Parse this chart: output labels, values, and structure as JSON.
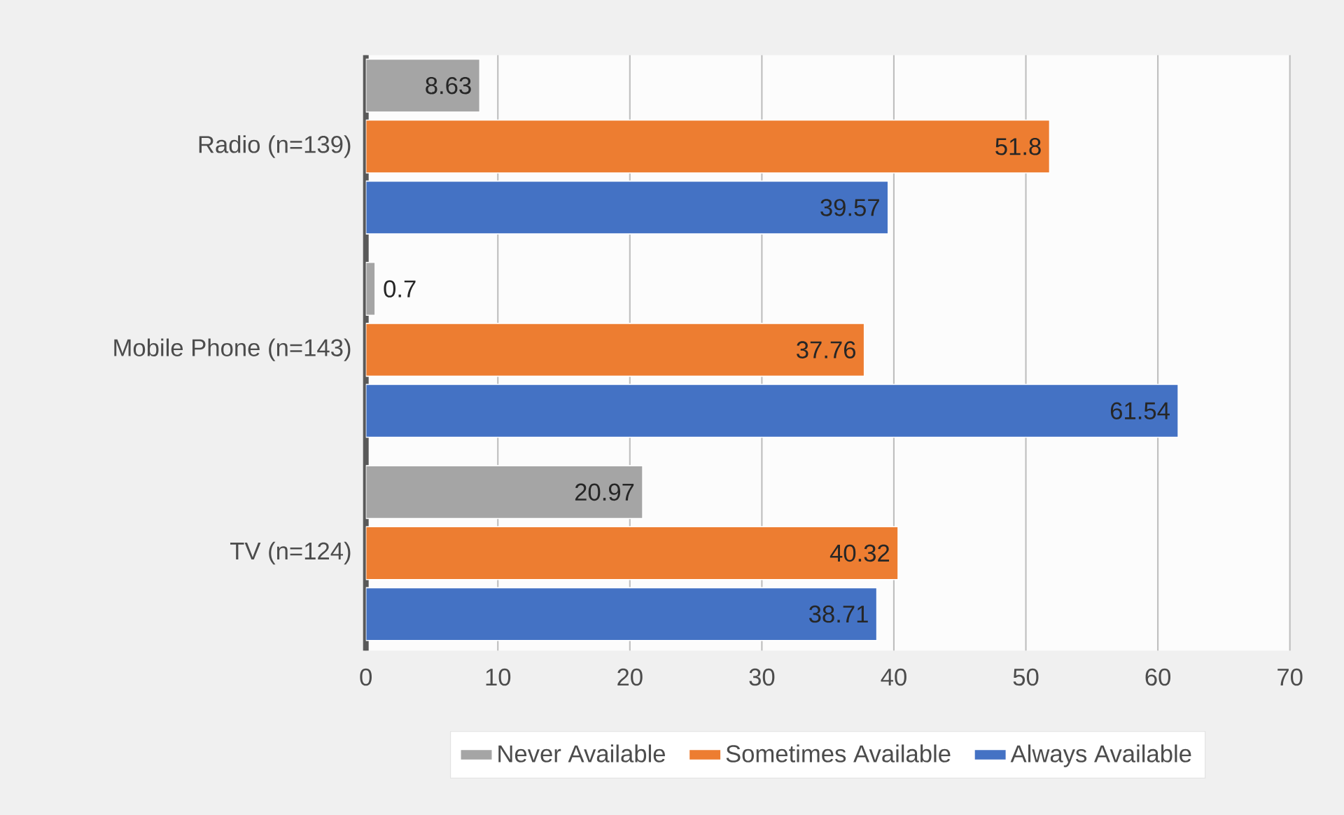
{
  "chart_data": {
    "type": "bar",
    "orientation": "horizontal",
    "categories": [
      "Radio (n=139)",
      "Mobile Phone (n=143)",
      "TV (n=124)"
    ],
    "series": [
      {
        "name": "Never Available",
        "color": "#a5a5a5",
        "values": [
          8.63,
          0.7,
          20.97
        ],
        "value_labels": [
          "8.63",
          "0.7",
          "20.97"
        ]
      },
      {
        "name": "Sometimes Available",
        "color": "#ed7d31",
        "values": [
          51.8,
          37.76,
          40.32
        ],
        "value_labels": [
          "51.8",
          "37.76",
          "40.32"
        ]
      },
      {
        "name": "Always Available",
        "color": "#4472c4",
        "values": [
          39.57,
          61.54,
          38.71
        ],
        "value_labels": [
          "39.57",
          "61.54",
          "38.71"
        ]
      }
    ],
    "xlim": [
      0,
      70
    ],
    "xticks": [
      0,
      10,
      20,
      30,
      40,
      50,
      60,
      70
    ],
    "grid": "x",
    "legend": "bottom"
  }
}
